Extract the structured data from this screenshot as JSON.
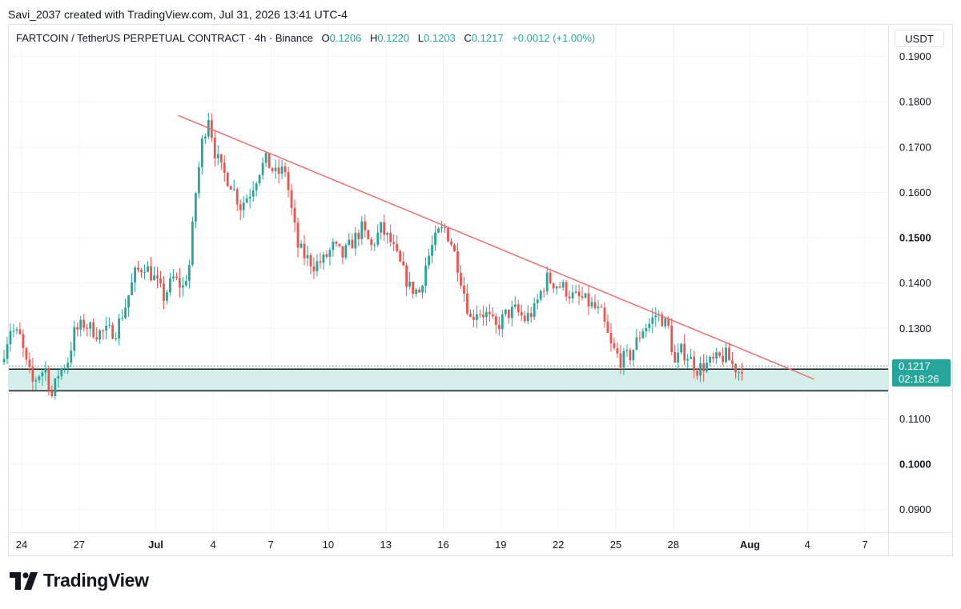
{
  "header": {
    "text": "Savi_2037 created with TradingView.com, Jul 31, 2026 13:41 UTC-4"
  },
  "legend": {
    "symbol": "FARTCOIN / TetherUS PERPETUAL CONTRACT · 4h · Binance",
    "open_label": "O",
    "open": "0.1206",
    "high_label": "H",
    "high": "0.1220",
    "low_label": "L",
    "low": "0.1203",
    "close_label": "C",
    "close": "0.1217",
    "change": "+0.0012 (+1.00%)"
  },
  "currency": "USDT",
  "price_tag": {
    "price": "0.1217",
    "countdown": "02:18:26"
  },
  "brand": {
    "name": "TradingView",
    "logo": "tradingview-logo-icon"
  },
  "colors": {
    "up": "#26a69a",
    "down": "#ef5350",
    "trendline": "#f06f6f",
    "zone_fill": "#d4efe9",
    "zone_border": "#131722"
  },
  "chart_data": {
    "type": "candlestick",
    "timeframe": "4h",
    "ylim": [
      0.085,
      0.197
    ],
    "y_ticks": [
      {
        "value": 0.19,
        "label": "0.1900",
        "bold": false
      },
      {
        "value": 0.18,
        "label": "0.1800",
        "bold": false
      },
      {
        "value": 0.17,
        "label": "0.1700",
        "bold": false
      },
      {
        "value": 0.16,
        "label": "0.1600",
        "bold": false
      },
      {
        "value": 0.15,
        "label": "0.1500",
        "bold": true
      },
      {
        "value": 0.14,
        "label": "0.1400",
        "bold": false
      },
      {
        "value": 0.13,
        "label": "0.1300",
        "bold": false
      },
      {
        "value": 0.11,
        "label": "0.1100",
        "bold": false
      },
      {
        "value": 0.1,
        "label": "0.1000",
        "bold": true
      },
      {
        "value": 0.09,
        "label": "0.0900",
        "bold": false
      }
    ],
    "x_ticks": [
      {
        "date": "2026-06-24",
        "label": "24",
        "bold": false
      },
      {
        "date": "2026-06-27",
        "label": "27",
        "bold": false
      },
      {
        "date": "2026-07-01",
        "label": "Jul",
        "bold": true
      },
      {
        "date": "2026-07-04",
        "label": "4",
        "bold": false
      },
      {
        "date": "2026-07-07",
        "label": "7",
        "bold": false
      },
      {
        "date": "2026-07-10",
        "label": "10",
        "bold": false
      },
      {
        "date": "2026-07-13",
        "label": "13",
        "bold": false
      },
      {
        "date": "2026-07-16",
        "label": "16",
        "bold": false
      },
      {
        "date": "2026-07-19",
        "label": "19",
        "bold": false
      },
      {
        "date": "2026-07-22",
        "label": "22",
        "bold": false
      },
      {
        "date": "2026-07-25",
        "label": "25",
        "bold": false
      },
      {
        "date": "2026-07-28",
        "label": "28",
        "bold": false
      },
      {
        "date": "2026-08-01",
        "label": "Aug",
        "bold": true
      },
      {
        "date": "2026-08-04",
        "label": "4",
        "bold": false
      },
      {
        "date": "2026-08-07",
        "label": "7",
        "bold": false
      }
    ],
    "x_range": [
      "2026-06-23",
      "2026-08-08"
    ],
    "price_path": [
      [
        "2026-06-23 00:00",
        0.1225
      ],
      [
        "2026-06-23 12:00",
        0.13
      ],
      [
        "2026-06-24 00:00",
        0.128
      ],
      [
        "2026-06-24 08:00",
        0.122
      ],
      [
        "2026-06-24 16:00",
        0.118
      ],
      [
        "2026-06-25 00:00",
        0.12
      ],
      [
        "2026-06-25 08:00",
        0.121
      ],
      [
        "2026-06-25 16:00",
        0.115
      ],
      [
        "2026-06-26 00:00",
        0.12
      ],
      [
        "2026-06-26 12:00",
        0.123
      ],
      [
        "2026-06-26 20:00",
        0.129
      ],
      [
        "2026-06-27 08:00",
        0.131
      ],
      [
        "2026-06-28 00:00",
        0.129
      ],
      [
        "2026-06-29 00:00",
        0.1295
      ],
      [
        "2026-06-29 12:00",
        0.135
      ],
      [
        "2026-06-30 00:00",
        0.142
      ],
      [
        "2026-06-30 12:00",
        0.144
      ],
      [
        "2026-07-01 00:00",
        0.141
      ],
      [
        "2026-07-01 12:00",
        0.137
      ],
      [
        "2026-07-02 00:00",
        0.141
      ],
      [
        "2026-07-02 12:00",
        0.139
      ],
      [
        "2026-07-02 20:00",
        0.144
      ],
      [
        "2026-07-03 04:00",
        0.16
      ],
      [
        "2026-07-03 12:00",
        0.171
      ],
      [
        "2026-07-03 20:00",
        0.177
      ],
      [
        "2026-07-04 04:00",
        0.169
      ],
      [
        "2026-07-04 12:00",
        0.165
      ],
      [
        "2026-07-05 00:00",
        0.162
      ],
      [
        "2026-07-05 12:00",
        0.157
      ],
      [
        "2026-07-06 00:00",
        0.16
      ],
      [
        "2026-07-06 12:00",
        0.165
      ],
      [
        "2026-07-06 20:00",
        0.167
      ],
      [
        "2026-07-07 08:00",
        0.164
      ],
      [
        "2026-07-07 20:00",
        0.165
      ],
      [
        "2026-07-08 04:00",
        0.156
      ],
      [
        "2026-07-08 12:00",
        0.148
      ],
      [
        "2026-07-08 20:00",
        0.146
      ],
      [
        "2026-07-09 08:00",
        0.144
      ],
      [
        "2026-07-09 20:00",
        0.145
      ],
      [
        "2026-07-10 08:00",
        0.148
      ],
      [
        "2026-07-10 20:00",
        0.146
      ],
      [
        "2026-07-11 08:00",
        0.149
      ],
      [
        "2026-07-11 20:00",
        0.152
      ],
      [
        "2026-07-12 08:00",
        0.148
      ],
      [
        "2026-07-12 20:00",
        0.152
      ],
      [
        "2026-07-13 08:00",
        0.149
      ],
      [
        "2026-07-13 20:00",
        0.144
      ],
      [
        "2026-07-14 08:00",
        0.139
      ],
      [
        "2026-07-14 20:00",
        0.138
      ],
      [
        "2026-07-15 04:00",
        0.144
      ],
      [
        "2026-07-15 12:00",
        0.148
      ],
      [
        "2026-07-15 20:00",
        0.151
      ],
      [
        "2026-07-16 04:00",
        0.152
      ],
      [
        "2026-07-16 12:00",
        0.149
      ],
      [
        "2026-07-16 20:00",
        0.144
      ],
      [
        "2026-07-17 04:00",
        0.138
      ],
      [
        "2026-07-17 12:00",
        0.132
      ],
      [
        "2026-07-17 20:00",
        0.134
      ],
      [
        "2026-07-18 08:00",
        0.133
      ],
      [
        "2026-07-18 20:00",
        0.13
      ],
      [
        "2026-07-19 08:00",
        0.133
      ],
      [
        "2026-07-19 20:00",
        0.134
      ],
      [
        "2026-07-20 08:00",
        0.132
      ],
      [
        "2026-07-20 20:00",
        0.134
      ],
      [
        "2026-07-21 04:00",
        0.138
      ],
      [
        "2026-07-21 12:00",
        0.141
      ],
      [
        "2026-07-21 20:00",
        0.14
      ],
      [
        "2026-07-22 08:00",
        0.139
      ],
      [
        "2026-07-22 20:00",
        0.137
      ],
      [
        "2026-07-23 08:00",
        0.1365
      ],
      [
        "2026-07-23 20:00",
        0.135
      ],
      [
        "2026-07-24 08:00",
        0.133
      ],
      [
        "2026-07-24 20:00",
        0.126
      ],
      [
        "2026-07-25 08:00",
        0.123
      ],
      [
        "2026-07-25 20:00",
        0.124
      ],
      [
        "2026-07-26 04:00",
        0.127
      ],
      [
        "2026-07-26 12:00",
        0.13
      ],
      [
        "2026-07-26 20:00",
        0.131
      ],
      [
        "2026-07-27 04:00",
        0.133
      ],
      [
        "2026-07-27 12:00",
        0.132
      ],
      [
        "2026-07-27 20:00",
        0.13
      ],
      [
        "2026-07-28 04:00",
        0.122
      ],
      [
        "2026-07-28 12:00",
        0.125
      ],
      [
        "2026-07-28 20:00",
        0.124
      ],
      [
        "2026-07-29 08:00",
        0.121
      ],
      [
        "2026-07-29 20:00",
        0.122
      ],
      [
        "2026-07-30 08:00",
        0.123
      ],
      [
        "2026-07-30 20:00",
        0.124
      ],
      [
        "2026-07-31 04:00",
        0.122
      ],
      [
        "2026-07-31 12:00",
        0.1206
      ],
      [
        "2026-07-31 13:41",
        0.1217
      ]
    ],
    "trendline": {
      "start": [
        "2026-07-02 04:00",
        0.177
      ],
      "end": [
        "2026-08-04 08:00",
        0.1188
      ]
    },
    "support_zone": {
      "top": 0.121,
      "bottom": 0.1162
    },
    "last_price": 0.1217
  }
}
